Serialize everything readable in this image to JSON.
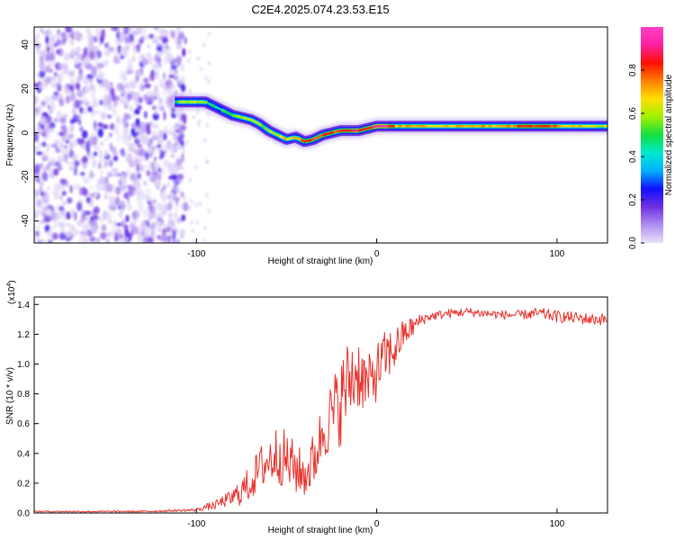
{
  "figure": {
    "title": "C2E4.2025.074.23.53.E15"
  },
  "colors": {
    "snr_line": "#e8312a",
    "colorbar_stops": [
      "#e8e0f8",
      "#b090f0",
      "#7030e0",
      "#1010ff",
      "#00b0ff",
      "#00e8d0",
      "#10e040",
      "#a0f000",
      "#ffe000",
      "#ff8000",
      "#ff1000",
      "#ff20a0",
      "#ff40c8"
    ]
  },
  "chart_data": [
    {
      "type": "heatmap",
      "xlabel": "Height of straight line (km)",
      "ylabel": "Frequency (Hz)",
      "xlim": [
        -190,
        128
      ],
      "ylim": [
        -50,
        48
      ],
      "x_ticks": [
        "-100",
        "0",
        "100"
      ],
      "x_tick_values": [
        -100,
        0,
        100
      ],
      "y_ticks": [
        "-40",
        "-20",
        "0",
        "20",
        "40"
      ],
      "y_tick_values": [
        -40,
        -20,
        0,
        20,
        40
      ],
      "colorbar": {
        "label": "Normalized spectral amplitude",
        "range": [
          0,
          1
        ],
        "ticks": [
          "0.0",
          "0.2",
          "0.4",
          "0.6",
          "0.8"
        ],
        "tick_values": [
          0.0,
          0.2,
          0.4,
          0.6,
          0.8
        ]
      },
      "noise_region_x": [
        -190,
        -112
      ],
      "ridge": {
        "x": [
          -112,
          -105,
          -100,
          -95,
          -90,
          -85,
          -80,
          -75,
          -70,
          -65,
          -60,
          -55,
          -50,
          -45,
          -40,
          -35,
          -30,
          -25,
          -20,
          -15,
          -10,
          -5,
          0,
          5,
          10,
          20,
          30,
          40,
          50,
          60,
          70,
          80,
          90,
          100,
          110,
          120,
          128
        ],
        "freq": [
          14,
          14,
          14,
          14,
          12,
          10,
          8,
          7,
          6,
          4,
          1,
          -1,
          -3,
          -2,
          -4,
          -3,
          -1,
          0,
          1,
          1,
          1,
          2,
          3,
          3,
          3,
          3,
          3,
          3,
          3,
          3,
          3,
          3,
          3,
          3,
          3,
          3,
          3
        ],
        "amp": [
          0.55,
          0.65,
          0.6,
          0.5,
          0.45,
          0.5,
          0.55,
          0.55,
          0.6,
          0.55,
          0.6,
          0.65,
          0.7,
          0.75,
          0.85,
          0.8,
          0.85,
          0.8,
          0.85,
          0.9,
          0.85,
          0.8,
          0.95,
          0.9,
          0.7,
          0.75,
          0.7,
          0.7,
          0.75,
          0.7,
          0.75,
          0.8,
          0.85,
          0.75,
          0.7,
          0.65,
          0.6
        ]
      }
    },
    {
      "type": "line",
      "xlabel": "Height of straight line (km)",
      "ylabel": "SNR (10 * v/v)",
      "y_scale_label": "(x10",
      "y_scale_exponent": "4",
      "y_scale_suffix": ")",
      "xlim": [
        -190,
        128
      ],
      "ylim": [
        0,
        1.45
      ],
      "x_ticks": [
        "-100",
        "0",
        "100"
      ],
      "x_tick_values": [
        -100,
        0,
        100
      ],
      "y_ticks": [
        "0.0",
        "0.2",
        "0.4",
        "0.6",
        "0.8",
        "1.0",
        "1.2",
        "1.4"
      ],
      "y_tick_values": [
        0.0,
        0.2,
        0.4,
        0.6,
        0.8,
        1.0,
        1.2,
        1.4
      ],
      "series": [
        {
          "x": [
            -190,
            -160,
            -130,
            -100,
            -95,
            -90,
            -85,
            -80,
            -75,
            -70,
            -65,
            -60,
            -55,
            -50,
            -45,
            -40,
            -35,
            -30,
            -25,
            -20,
            -15,
            -10,
            -5,
            0,
            5,
            10,
            15,
            20,
            25,
            30,
            40,
            50,
            60,
            70,
            80,
            90,
            100,
            110,
            120,
            128
          ],
          "y": [
            0.01,
            0.01,
            0.01,
            0.02,
            0.04,
            0.05,
            0.08,
            0.1,
            0.15,
            0.2,
            0.3,
            0.35,
            0.4,
            0.35,
            0.3,
            0.25,
            0.35,
            0.55,
            0.65,
            0.75,
            0.9,
            0.95,
            0.85,
            0.95,
            1.05,
            1.1,
            1.2,
            1.25,
            1.3,
            1.32,
            1.34,
            1.35,
            1.34,
            1.33,
            1.33,
            1.34,
            1.32,
            1.31,
            1.3,
            1.3
          ],
          "noise": [
            0.005,
            0.005,
            0.006,
            0.01,
            0.02,
            0.03,
            0.04,
            0.06,
            0.1,
            0.12,
            0.15,
            0.18,
            0.2,
            0.2,
            0.18,
            0.15,
            0.2,
            0.2,
            0.25,
            0.3,
            0.3,
            0.25,
            0.2,
            0.2,
            0.18,
            0.15,
            0.1,
            0.07,
            0.04,
            0.03,
            0.03,
            0.03,
            0.03,
            0.03,
            0.03,
            0.04,
            0.04,
            0.04,
            0.04,
            0.04
          ]
        }
      ]
    }
  ]
}
